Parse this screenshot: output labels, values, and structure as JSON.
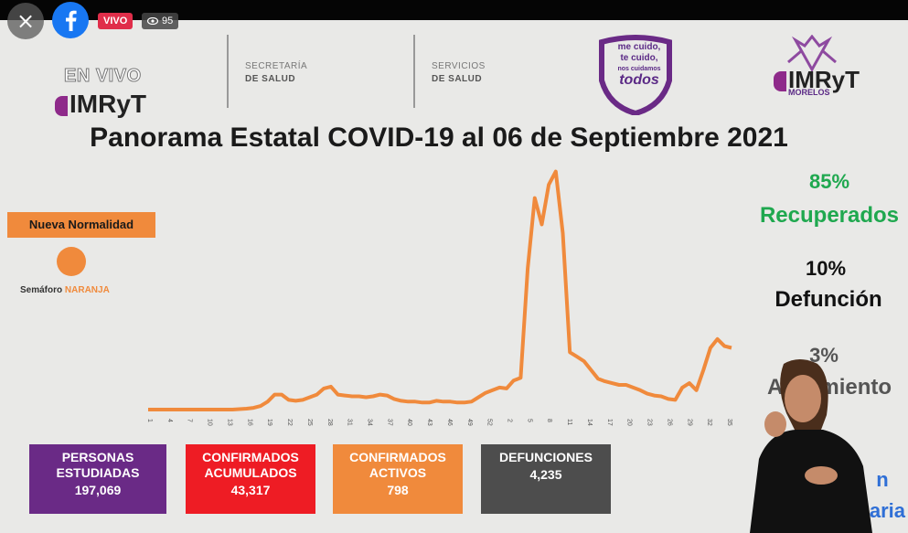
{
  "overlay": {
    "close_icon": "×",
    "live_badge": "VIVO",
    "viewer_count": "95"
  },
  "header": {
    "en_vivo": "EN VIVO",
    "imryt_left": "IMRyT",
    "secretaria": "SECRETARÍA",
    "de_salud": "DE SALUD",
    "servicios": "SERVICIOS",
    "de_salud2": "DE SALUD",
    "campaign_line1": "me cuido,",
    "campaign_line2": "te cuido,",
    "campaign_line3": "nos cuidamos",
    "campaign_line4": "todos",
    "imryt_right": "IMRyT",
    "morelos": "MORELOS"
  },
  "title": "Panorama Estatal COVID-19 al 06 de Septiembre 2021",
  "legend": {
    "nueva_normalidad": "Nueva Normalidad",
    "semaforo_label": "Semáforo",
    "semaforo_color": "NARANJA"
  },
  "side_stats": {
    "recuperados_pct": "85%",
    "recuperados_label": "Recuperados",
    "defuncion_pct": "10%",
    "defuncion_label": "Defunción",
    "aislamiento_pct": "3%",
    "aislamiento_label": "Aislamiento",
    "hosp_label_1": "n",
    "hosp_label_2": "ospitalaria"
  },
  "cards": [
    {
      "label": "PERSONAS ESTUDIADAS",
      "value": "197,069",
      "color": "#6a2a86"
    },
    {
      "label": "CONFIRMADOS ACUMULADOS",
      "value": "43,317",
      "color": "#ee1c24"
    },
    {
      "label": "CONFIRMADOS ACTIVOS",
      "value": "798",
      "color": "#f08a3c"
    },
    {
      "label": "DEFUNCIONES",
      "value": "4,235",
      "color": "#4d4d4d"
    }
  ],
  "colors": {
    "line": "#f08a3c",
    "recuperados": "#1fa84f",
    "defuncion": "#111111",
    "aislamiento": "#555555",
    "hosp": "#2f6fd6"
  },
  "chart_data": {
    "type": "line",
    "x_ticks": [
      "1",
      "4",
      "7",
      "10",
      "13",
      "16",
      "19",
      "22",
      "25",
      "28",
      "31",
      "34",
      "37",
      "40",
      "43",
      "46",
      "49",
      "52",
      "2",
      "5",
      "8",
      "11",
      "14",
      "17",
      "20",
      "23",
      "26",
      "29",
      "32",
      "35"
    ],
    "series": [
      {
        "values": [
          0,
          0,
          0,
          0,
          0,
          0,
          0,
          0,
          0,
          0,
          0,
          0,
          0,
          0.5,
          1,
          2,
          4,
          9,
          17,
          17,
          11,
          10,
          11,
          14,
          17,
          24,
          26,
          17,
          16,
          15,
          15,
          14,
          15,
          17,
          16,
          12,
          10,
          9,
          9,
          8,
          8,
          10,
          9,
          9,
          8,
          8,
          9,
          14,
          19,
          22,
          25,
          24,
          33,
          36,
          160,
          240,
          210,
          255,
          270,
          200,
          65,
          60,
          55,
          45,
          35,
          32,
          30,
          28,
          28,
          25,
          22,
          18,
          16,
          15,
          12,
          11,
          25,
          30,
          22,
          45,
          70,
          80,
          72,
          70
        ]
      }
    ],
    "ylim": [
      0,
      280
    ]
  }
}
